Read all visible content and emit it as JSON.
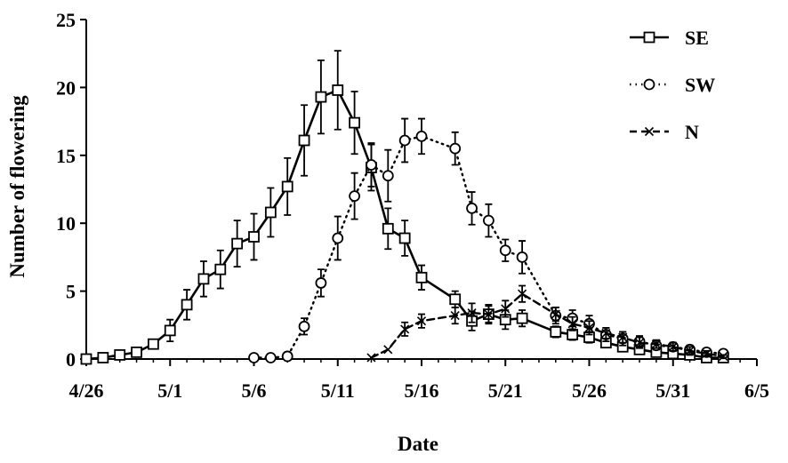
{
  "chart_data": {
    "type": "line",
    "title": "",
    "xlabel": "Date",
    "ylabel": "Number of flowering",
    "x_axis": {
      "start_day": 0,
      "end_day": 40,
      "tick_labels": [
        "4/26",
        "5/1",
        "5/6",
        "5/11",
        "5/16",
        "5/21",
        "5/26",
        "5/31",
        "6/5"
      ]
    },
    "y_axis": {
      "ylim": [
        0,
        25
      ],
      "tick_labels": [
        "0",
        "5",
        "10",
        "15",
        "20",
        "25"
      ]
    },
    "grid": false,
    "legend_position": "top-right",
    "series": [
      {
        "name": "SE",
        "style": "solid",
        "marker": "square",
        "points": [
          {
            "date": "4/26",
            "y": 0
          },
          {
            "date": "4/27",
            "y": 0.1
          },
          {
            "date": "4/28",
            "y": 0.3
          },
          {
            "date": "4/29",
            "y": 0.5
          },
          {
            "date": "4/30",
            "y": 1.1,
            "err": 0.3
          },
          {
            "date": "5/1",
            "y": 2.1,
            "err": 0.8
          },
          {
            "date": "5/2",
            "y": 4.0,
            "err": 1.1
          },
          {
            "date": "5/3",
            "y": 5.9,
            "err": 1.3
          },
          {
            "date": "5/4",
            "y": 6.6,
            "err": 1.4
          },
          {
            "date": "5/5",
            "y": 8.5,
            "err": 1.7
          },
          {
            "date": "5/6",
            "y": 9.0,
            "err": 1.7
          },
          {
            "date": "5/7",
            "y": 10.8,
            "err": 1.8
          },
          {
            "date": "5/8",
            "y": 12.7,
            "err": 2.1
          },
          {
            "date": "5/9",
            "y": 16.1,
            "err": 2.6
          },
          {
            "date": "5/10",
            "y": 19.3,
            "err": 2.7
          },
          {
            "date": "5/11",
            "y": 19.8,
            "err": 2.9
          },
          {
            "date": "5/12",
            "y": 17.4,
            "err": 2.3
          },
          {
            "date": "5/13",
            "y": 14.1,
            "err": 1.7
          },
          {
            "date": "5/14",
            "y": 9.6,
            "err": 1.5
          },
          {
            "date": "5/15",
            "y": 8.9,
            "err": 1.3
          },
          {
            "date": "5/16",
            "y": 6.0,
            "err": 0.9
          },
          {
            "date": "5/18",
            "y": 4.4,
            "err": 0.6
          },
          {
            "date": "5/19",
            "y": 2.8,
            "err": 0.7
          },
          {
            "date": "5/20",
            "y": 3.3,
            "err": 0.7
          },
          {
            "date": "5/21",
            "y": 2.9,
            "err": 0.7
          },
          {
            "date": "5/22",
            "y": 3.0,
            "err": 0.6
          },
          {
            "date": "5/24",
            "y": 2.0,
            "err": 0.4
          },
          {
            "date": "5/25",
            "y": 1.8,
            "err": 0.4
          },
          {
            "date": "5/26",
            "y": 1.6,
            "err": 0.4
          },
          {
            "date": "5/27",
            "y": 1.2,
            "err": 0.3
          },
          {
            "date": "5/28",
            "y": 0.9,
            "err": 0.3
          },
          {
            "date": "5/29",
            "y": 0.7,
            "err": 0.3
          },
          {
            "date": "5/30",
            "y": 0.5,
            "err": 0.2
          },
          {
            "date": "5/31",
            "y": 0.4,
            "err": 0.2
          },
          {
            "date": "6/1",
            "y": 0.3,
            "err": 0.2
          },
          {
            "date": "6/2",
            "y": 0.1
          },
          {
            "date": "6/3",
            "y": 0.1
          }
        ]
      },
      {
        "name": "SW",
        "style": "dotted",
        "marker": "circle",
        "points": [
          {
            "date": "5/6",
            "y": 0.1
          },
          {
            "date": "5/7",
            "y": 0.1
          },
          {
            "date": "5/8",
            "y": 0.2
          },
          {
            "date": "5/9",
            "y": 2.4,
            "err": 0.6
          },
          {
            "date": "5/10",
            "y": 5.6,
            "err": 1.0
          },
          {
            "date": "5/11",
            "y": 8.9,
            "err": 1.6
          },
          {
            "date": "5/12",
            "y": 12.0,
            "err": 1.7
          },
          {
            "date": "5/13",
            "y": 14.3,
            "err": 1.6
          },
          {
            "date": "5/14",
            "y": 13.5,
            "err": 1.9
          },
          {
            "date": "5/15",
            "y": 16.1,
            "err": 1.6
          },
          {
            "date": "5/16",
            "y": 16.4,
            "err": 1.3
          },
          {
            "date": "5/18",
            "y": 15.5,
            "err": 1.2
          },
          {
            "date": "5/19",
            "y": 11.1,
            "err": 1.2
          },
          {
            "date": "5/20",
            "y": 10.2,
            "err": 1.2
          },
          {
            "date": "5/21",
            "y": 8.0,
            "err": 0.8
          },
          {
            "date": "5/22",
            "y": 7.5,
            "err": 1.2
          },
          {
            "date": "5/24",
            "y": 3.2,
            "err": 0.6
          },
          {
            "date": "5/25",
            "y": 3.0,
            "err": 0.6
          },
          {
            "date": "5/26",
            "y": 2.6,
            "err": 0.6
          },
          {
            "date": "5/27",
            "y": 1.8,
            "err": 0.5
          },
          {
            "date": "5/28",
            "y": 1.5,
            "err": 0.5
          },
          {
            "date": "5/29",
            "y": 1.3,
            "err": 0.4
          },
          {
            "date": "5/30",
            "y": 1.0,
            "err": 0.3
          },
          {
            "date": "5/31",
            "y": 0.9,
            "err": 0.3
          },
          {
            "date": "6/1",
            "y": 0.7,
            "err": 0.3
          },
          {
            "date": "6/2",
            "y": 0.5,
            "err": 0.2
          },
          {
            "date": "6/3",
            "y": 0.4,
            "err": 0.2
          }
        ]
      },
      {
        "name": "N",
        "style": "dashed",
        "marker": "x",
        "points": [
          {
            "date": "5/13",
            "y": 0.1
          },
          {
            "date": "5/14",
            "y": 0.7
          },
          {
            "date": "5/15",
            "y": 2.2,
            "err": 0.5
          },
          {
            "date": "5/16",
            "y": 2.8,
            "err": 0.5
          },
          {
            "date": "5/18",
            "y": 3.2,
            "err": 0.6
          },
          {
            "date": "5/19",
            "y": 3.4,
            "err": 0.7
          },
          {
            "date": "5/20",
            "y": 3.3,
            "err": 0.6
          },
          {
            "date": "5/21",
            "y": 3.7,
            "err": 0.6
          },
          {
            "date": "5/22",
            "y": 4.8,
            "err": 0.6
          },
          {
            "date": "5/24",
            "y": 3.3,
            "err": 0.5
          },
          {
            "date": "5/25",
            "y": 2.6,
            "err": 0.5
          },
          {
            "date": "5/26",
            "y": 2.3,
            "err": 0.5
          },
          {
            "date": "5/27",
            "y": 1.9,
            "err": 0.4
          },
          {
            "date": "5/28",
            "y": 1.6,
            "err": 0.4
          },
          {
            "date": "5/29",
            "y": 1.2,
            "err": 0.4
          },
          {
            "date": "5/30",
            "y": 1.1,
            "err": 0.3
          },
          {
            "date": "5/31",
            "y": 0.9,
            "err": 0.3
          },
          {
            "date": "6/1",
            "y": 0.6,
            "err": 0.3
          },
          {
            "date": "6/2",
            "y": 0.4,
            "err": 0.2
          },
          {
            "date": "6/3",
            "y": 0.2,
            "err": 0.1
          }
        ]
      }
    ],
    "colors": {
      "line": "#000000",
      "marker_fill": "#ffffff"
    }
  }
}
